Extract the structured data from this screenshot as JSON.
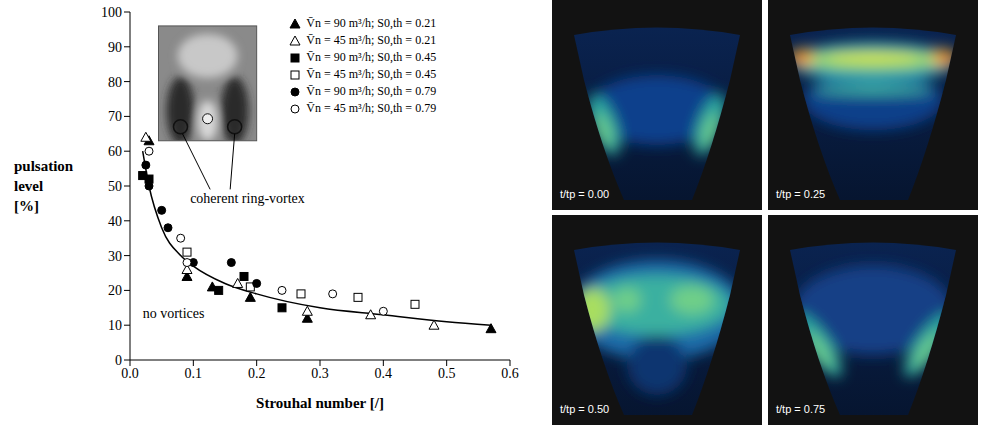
{
  "chart_data": {
    "type": "scatter",
    "x_label": "Strouhal number  [/]",
    "y_label": "pulsation level [%]",
    "xlim": [
      0,
      0.6
    ],
    "xticks": [
      {
        "value": 0,
        "label": "0.0"
      },
      0.1,
      0.2,
      0.3,
      0.4,
      0.5,
      0.6
    ],
    "ylim": [
      0,
      100
    ],
    "yticks": [
      0,
      10,
      20,
      30,
      40,
      50,
      60,
      70,
      80,
      90,
      100
    ],
    "grid": false,
    "legend": "upper right",
    "annotations": [
      "coherent ring-vortex",
      "no vortices"
    ],
    "series": [
      {
        "name": "V̄n = 90 m³/h; S0,th = 0.21",
        "marker": "triangle",
        "color": "#000000",
        "x": [
          0.03,
          0.09,
          0.13,
          0.19,
          0.28,
          0.57
        ],
        "values": [
          63,
          24,
          21,
          18,
          12,
          9
        ]
      },
      {
        "name": "V̄n = 45 m³/h; S0,th = 0.21",
        "marker": "triangle-open",
        "color": "#000000",
        "x": [
          0.025,
          0.09,
          0.17,
          0.28,
          0.38,
          0.48
        ],
        "values": [
          64,
          26,
          22,
          14,
          13,
          10
        ]
      },
      {
        "name": "V̄n = 90 m³/h; S0,th = 0.45",
        "marker": "square",
        "color": "#000000",
        "x": [
          0.02,
          0.03,
          0.14,
          0.18,
          0.24
        ],
        "values": [
          53,
          52,
          20,
          24,
          15
        ]
      },
      {
        "name": "V̄n = 45 m³/h; S0,th = 0.45",
        "marker": "square-open",
        "color": "#000000",
        "x": [
          0.09,
          0.19,
          0.27,
          0.36,
          0.45
        ],
        "values": [
          31,
          21,
          19,
          18,
          16
        ]
      },
      {
        "name": "V̄n = 90 m³/h; S0,th = 0.79",
        "marker": "circle",
        "color": "#000000",
        "x": [
          0.025,
          0.03,
          0.05,
          0.06,
          0.1,
          0.16,
          0.2
        ],
        "values": [
          56,
          50,
          43,
          38,
          28,
          28,
          22
        ]
      },
      {
        "name": "V̄n = 45 m³/h; S0,th = 0.79",
        "marker": "circle-open",
        "color": "#000000",
        "x": [
          0.03,
          0.08,
          0.09,
          0.24,
          0.32,
          0.4
        ],
        "values": [
          60,
          35,
          28,
          20,
          19,
          14
        ]
      },
      {
        "type": "line",
        "color": "#000000",
        "x": [
          0.02,
          0.03,
          0.05,
          0.08,
          0.1,
          0.15,
          0.2,
          0.3,
          0.4,
          0.5,
          0.57
        ],
        "values": [
          60,
          50,
          38,
          30,
          27,
          22,
          19,
          15,
          13,
          11,
          10
        ]
      }
    ]
  },
  "panels": [
    {
      "label": "t/tp = 0.00"
    },
    {
      "label": "t/tp = 0.25"
    },
    {
      "label": "t/tp = 0.50"
    },
    {
      "label": "t/tp = 0.75"
    }
  ]
}
